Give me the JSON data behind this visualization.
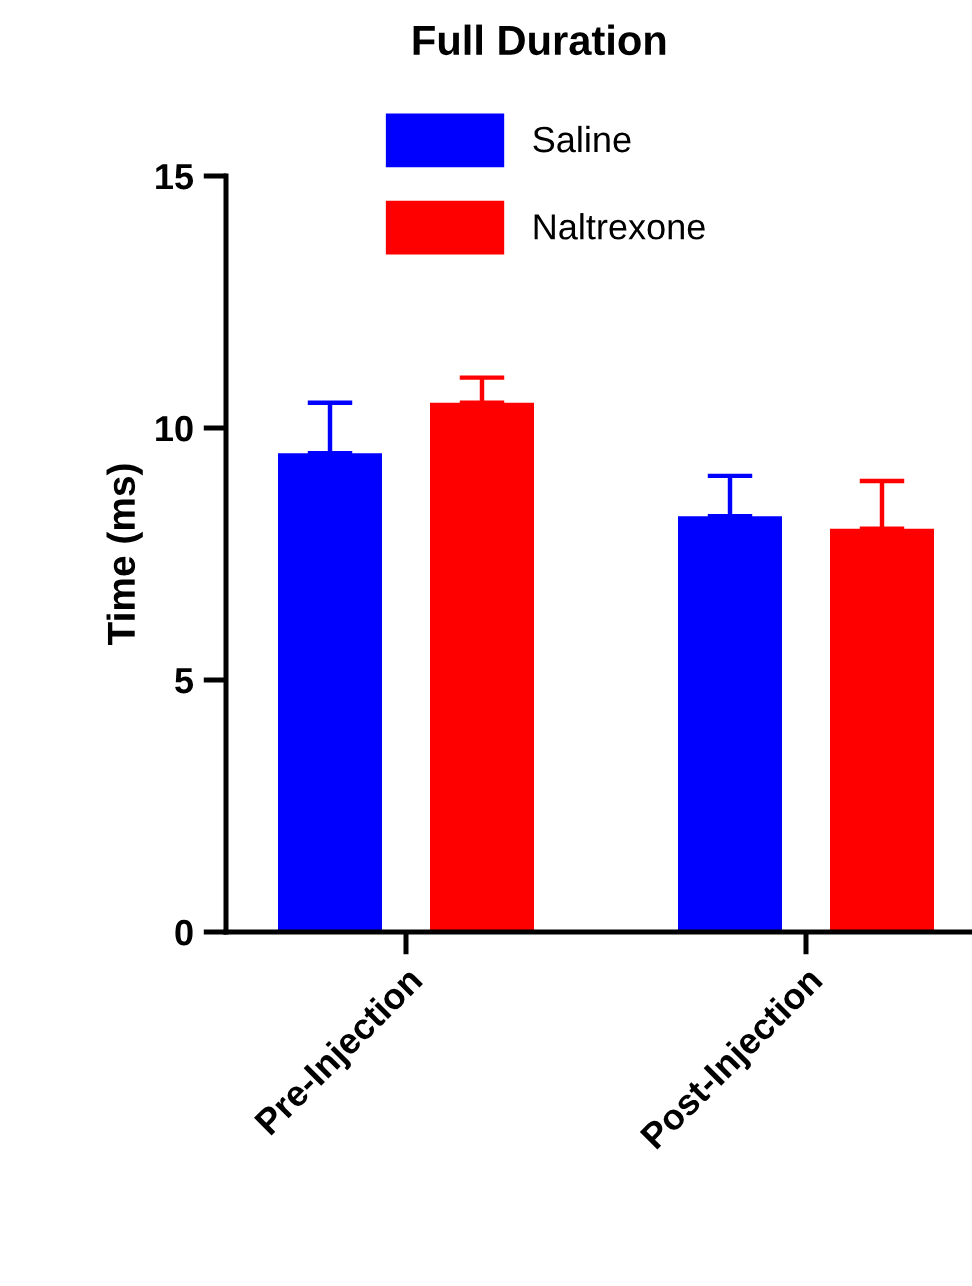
{
  "chart_data": {
    "type": "bar",
    "title": "Full Duration",
    "ylabel": "Time (ms)",
    "categories": [
      "Pre-Injection",
      "Post-Injection"
    ],
    "series": [
      {
        "name": "Saline",
        "color": "#0000ff",
        "values": [
          9.5,
          8.25
        ],
        "errors": [
          [
            9.5,
            10.5
          ],
          [
            8.25,
            9.05
          ]
        ]
      },
      {
        "name": "Naltrexone",
        "color": "#ff0000",
        "values": [
          10.5,
          8.0
        ],
        "errors": [
          [
            10.5,
            11.0
          ],
          [
            8.0,
            8.95
          ]
        ]
      }
    ],
    "ylim": [
      0,
      15
    ],
    "yticks": [
      0,
      5,
      10,
      15
    ],
    "grid": false,
    "legend": "top"
  }
}
